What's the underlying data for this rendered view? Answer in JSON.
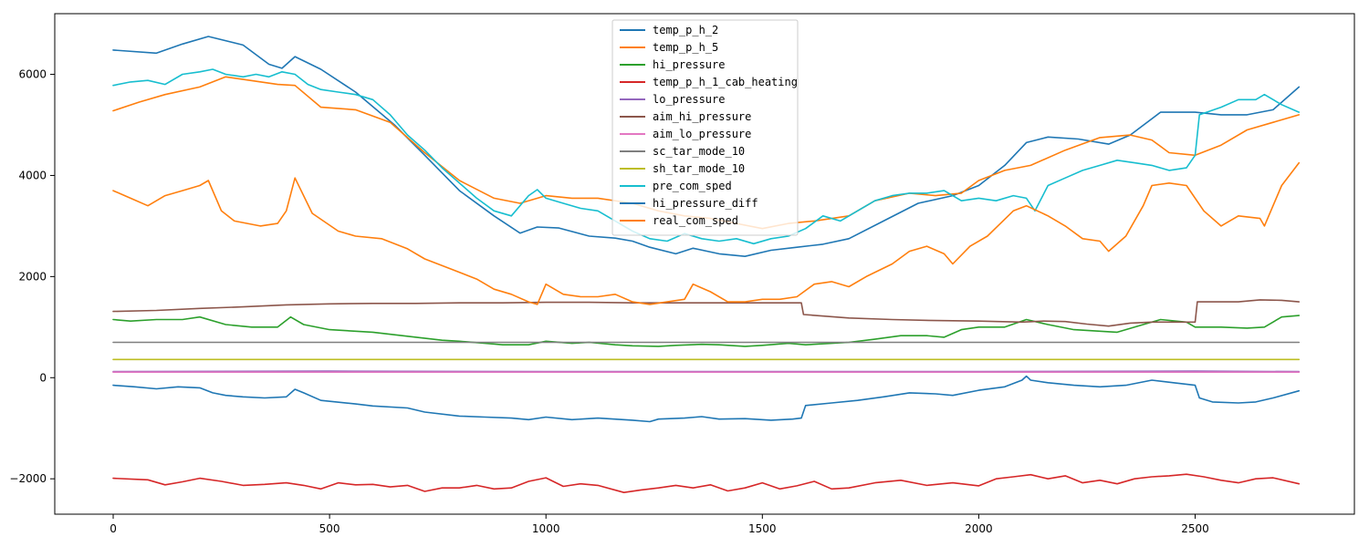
{
  "chart_data": {
    "type": "line",
    "title": "",
    "xlabel": "",
    "ylabel": "",
    "xlim": [
      -135,
      2868
    ],
    "ylim": [
      -2700,
      7200
    ],
    "xticks": [
      0,
      500,
      1000,
      1500,
      2000,
      2500
    ],
    "yticks": [
      -2000,
      0,
      2000,
      4000,
      6000
    ],
    "tick_labels": {
      "x": [
        "0",
        "500",
        "1000",
        "1500",
        "2000",
        "2500"
      ],
      "y": [
        "−2000",
        "0",
        "2000",
        "4000",
        "6000"
      ]
    },
    "grid": false,
    "legend_position": "top-center",
    "series": [
      {
        "name": "temp_p_h_2",
        "color": "#1f77b4",
        "x": [
          0,
          100,
          160,
          220,
          300,
          360,
          390,
          420,
          480,
          560,
          650,
          720,
          800,
          880,
          940,
          980,
          1030,
          1100,
          1160,
          1200,
          1240,
          1300,
          1340,
          1400,
          1460,
          1520,
          1580,
          1640,
          1700,
          1780,
          1860,
          1940,
          2000,
          2060,
          2110,
          2160,
          2230,
          2300,
          2350,
          2420,
          2500,
          2560,
          2620,
          2680,
          2740
        ],
        "y": [
          6480,
          6420,
          6600,
          6750,
          6580,
          6200,
          6120,
          6350,
          6100,
          5650,
          5000,
          4400,
          3700,
          3200,
          2860,
          2980,
          2960,
          2800,
          2760,
          2700,
          2580,
          2450,
          2560,
          2450,
          2400,
          2520,
          2580,
          2640,
          2750,
          3100,
          3450,
          3600,
          3800,
          4200,
          4650,
          4760,
          4720,
          4620,
          4800,
          5250,
          5250,
          5200,
          5200,
          5300,
          5750
        ]
      },
      {
        "name": "temp_p_h_5",
        "color": "#ff7f0e",
        "x": [
          0,
          60,
          120,
          200,
          260,
          300,
          380,
          420,
          480,
          560,
          640,
          720,
          800,
          880,
          940,
          1000,
          1060,
          1120,
          1200,
          1260,
          1320,
          1380,
          1440,
          1500,
          1560,
          1620,
          1700,
          1760,
          1840,
          1900,
          1960,
          2000,
          2060,
          2120,
          2200,
          2280,
          2350,
          2400,
          2440,
          2500,
          2560,
          2620,
          2680,
          2740
        ],
        "y": [
          5280,
          5450,
          5600,
          5750,
          5950,
          5900,
          5800,
          5780,
          5350,
          5300,
          5050,
          4450,
          3900,
          3550,
          3450,
          3600,
          3550,
          3550,
          3450,
          3300,
          3200,
          3150,
          3050,
          2950,
          3050,
          3100,
          3200,
          3500,
          3650,
          3600,
          3650,
          3900,
          4100,
          4200,
          4500,
          4750,
          4800,
          4700,
          4450,
          4400,
          4600,
          4900,
          5050,
          5200
        ]
      },
      {
        "name": "hi_pressure",
        "color": "#2ca02c",
        "x": [
          0,
          40,
          100,
          160,
          200,
          260,
          320,
          380,
          410,
          440,
          500,
          600,
          700,
          760,
          800,
          860,
          900,
          960,
          1000,
          1060,
          1100,
          1160,
          1200,
          1260,
          1300,
          1360,
          1400,
          1460,
          1500,
          1560,
          1600,
          1660,
          1700,
          1760,
          1820,
          1880,
          1920,
          1960,
          2000,
          2060,
          2110,
          2160,
          2220,
          2280,
          2320,
          2380,
          2420,
          2480,
          2500,
          2560,
          2620,
          2660,
          2700,
          2740
        ],
        "y": [
          1150,
          1120,
          1150,
          1150,
          1200,
          1050,
          1000,
          1000,
          1200,
          1050,
          950,
          900,
          800,
          740,
          720,
          680,
          650,
          650,
          720,
          680,
          700,
          650,
          630,
          620,
          640,
          660,
          650,
          620,
          640,
          680,
          650,
          680,
          700,
          760,
          830,
          830,
          800,
          950,
          1000,
          1000,
          1150,
          1050,
          950,
          920,
          900,
          1050,
          1150,
          1100,
          1000,
          1000,
          980,
          1000,
          1200,
          1230
        ]
      },
      {
        "name": "temp_p_h_1_cab_heating",
        "color": "#d62728",
        "x": [
          0,
          50,
          80,
          120,
          160,
          200,
          250,
          300,
          350,
          400,
          440,
          480,
          520,
          560,
          600,
          640,
          680,
          720,
          760,
          800,
          840,
          880,
          920,
          960,
          1000,
          1040,
          1080,
          1120,
          1180,
          1220,
          1260,
          1300,
          1340,
          1380,
          1420,
          1460,
          1500,
          1540,
          1580,
          1620,
          1660,
          1700,
          1760,
          1820,
          1880,
          1940,
          2000,
          2040,
          2080,
          2120,
          2160,
          2200,
          2240,
          2280,
          2320,
          2360,
          2400,
          2440,
          2480,
          2520,
          2560,
          2600,
          2640,
          2680,
          2740
        ],
        "y": [
          -1990,
          -2010,
          -2020,
          -2120,
          -2060,
          -1990,
          -2050,
          -2130,
          -2110,
          -2080,
          -2130,
          -2200,
          -2080,
          -2120,
          -2110,
          -2160,
          -2130,
          -2250,
          -2180,
          -2180,
          -2130,
          -2200,
          -2180,
          -2050,
          -1980,
          -2150,
          -2100,
          -2130,
          -2270,
          -2220,
          -2180,
          -2130,
          -2180,
          -2120,
          -2240,
          -2180,
          -2080,
          -2200,
          -2140,
          -2050,
          -2200,
          -2180,
          -2080,
          -2030,
          -2130,
          -2080,
          -2140,
          -2000,
          -1960,
          -1920,
          -2000,
          -1940,
          -2080,
          -2030,
          -2100,
          -2000,
          -1960,
          -1940,
          -1910,
          -1960,
          -2030,
          -2080,
          -2000,
          -1980,
          -2100
        ]
      },
      {
        "name": "lo_pressure",
        "color": "#9467bd",
        "x": [
          0,
          500,
          1000,
          1500,
          2000,
          2500,
          2740
        ],
        "y": [
          120,
          130,
          120,
          120,
          120,
          130,
          120
        ]
      },
      {
        "name": "aim_hi_pressure",
        "color": "#8c564b",
        "x": [
          0,
          100,
          200,
          300,
          400,
          500,
          600,
          700,
          800,
          900,
          1000,
          1100,
          1200,
          1300,
          1400,
          1500,
          1590,
          1595,
          1700,
          1800,
          1900,
          2000,
          2100,
          2150,
          2200,
          2250,
          2300,
          2350,
          2400,
          2450,
          2500,
          2505,
          2600,
          2650,
          2700,
          2740
        ],
        "y": [
          1310,
          1330,
          1370,
          1400,
          1440,
          1460,
          1470,
          1470,
          1480,
          1480,
          1490,
          1490,
          1480,
          1480,
          1480,
          1480,
          1480,
          1250,
          1180,
          1150,
          1130,
          1120,
          1100,
          1120,
          1110,
          1060,
          1020,
          1080,
          1100,
          1100,
          1100,
          1500,
          1500,
          1540,
          1530,
          1500
        ]
      },
      {
        "name": "aim_lo_pressure",
        "color": "#e377c2",
        "x": [
          0,
          500,
          1000,
          1500,
          2000,
          2500,
          2740
        ],
        "y": [
          110,
          110,
          110,
          110,
          110,
          110,
          110
        ]
      },
      {
        "name": "sc_tar_mode_10",
        "color": "#7f7f7f",
        "x": [
          0,
          2740
        ],
        "y": [
          700,
          700
        ]
      },
      {
        "name": "sh_tar_mode_10",
        "color": "#bcbd22",
        "x": [
          0,
          2740
        ],
        "y": [
          360,
          360
        ]
      },
      {
        "name": "pre_com_sped",
        "color": "#17becf",
        "x": [
          0,
          40,
          80,
          120,
          160,
          200,
          230,
          260,
          300,
          330,
          360,
          390,
          420,
          450,
          480,
          520,
          560,
          600,
          640,
          680,
          720,
          760,
          800,
          840,
          880,
          920,
          960,
          980,
          1000,
          1040,
          1080,
          1120,
          1160,
          1200,
          1240,
          1280,
          1320,
          1360,
          1400,
          1440,
          1480,
          1520,
          1560,
          1600,
          1640,
          1680,
          1720,
          1760,
          1800,
          1840,
          1880,
          1920,
          1960,
          2000,
          2040,
          2080,
          2110,
          2130,
          2160,
          2200,
          2240,
          2280,
          2320,
          2360,
          2400,
          2440,
          2480,
          2500,
          2510,
          2560,
          2600,
          2640,
          2660,
          2700,
          2740
        ],
        "y": [
          5780,
          5850,
          5880,
          5800,
          6000,
          6050,
          6100,
          6000,
          5950,
          6000,
          5950,
          6050,
          6000,
          5800,
          5700,
          5650,
          5600,
          5500,
          5200,
          4800,
          4500,
          4150,
          3850,
          3550,
          3300,
          3200,
          3600,
          3720,
          3550,
          3450,
          3350,
          3300,
          3100,
          2900,
          2750,
          2700,
          2850,
          2750,
          2700,
          2750,
          2650,
          2750,
          2800,
          2950,
          3200,
          3100,
          3300,
          3500,
          3600,
          3650,
          3650,
          3700,
          3500,
          3550,
          3500,
          3600,
          3550,
          3300,
          3800,
          3950,
          4100,
          4200,
          4300,
          4250,
          4200,
          4100,
          4150,
          4400,
          5200,
          5350,
          5500,
          5500,
          5600,
          5400,
          5250
        ]
      },
      {
        "name": "hi_pressure_diff",
        "color": "#1f77b4",
        "x": [
          0,
          50,
          100,
          150,
          200,
          230,
          260,
          300,
          350,
          400,
          420,
          440,
          480,
          560,
          600,
          680,
          720,
          800,
          860,
          920,
          960,
          1000,
          1060,
          1120,
          1200,
          1240,
          1260,
          1320,
          1360,
          1400,
          1460,
          1520,
          1570,
          1590,
          1600,
          1660,
          1720,
          1780,
          1840,
          1900,
          1940,
          2000,
          2060,
          2100,
          2110,
          2120,
          2160,
          2220,
          2280,
          2340,
          2400,
          2450,
          2500,
          2510,
          2540,
          2600,
          2640,
          2680,
          2740
        ],
        "y": [
          -150,
          -180,
          -220,
          -180,
          -200,
          -300,
          -350,
          -380,
          -400,
          -380,
          -230,
          -300,
          -450,
          -520,
          -560,
          -600,
          -680,
          -760,
          -780,
          -800,
          -830,
          -780,
          -830,
          -800,
          -840,
          -870,
          -820,
          -800,
          -770,
          -820,
          -810,
          -840,
          -820,
          -800,
          -550,
          -500,
          -450,
          -380,
          -300,
          -320,
          -350,
          -250,
          -180,
          -50,
          30,
          -50,
          -100,
          -150,
          -180,
          -150,
          -50,
          -100,
          -150,
          -400,
          -480,
          -500,
          -480,
          -400,
          -260
        ]
      },
      {
        "name": "real_com_sped",
        "color": "#ff7f0e",
        "x": [
          0,
          40,
          80,
          120,
          160,
          200,
          220,
          250,
          280,
          340,
          380,
          400,
          420,
          460,
          520,
          560,
          620,
          680,
          720,
          780,
          840,
          880,
          920,
          960,
          980,
          1000,
          1040,
          1080,
          1120,
          1160,
          1200,
          1240,
          1280,
          1320,
          1340,
          1380,
          1420,
          1460,
          1500,
          1540,
          1580,
          1620,
          1660,
          1700,
          1740,
          1800,
          1840,
          1880,
          1920,
          1940,
          1980,
          2020,
          2080,
          2110,
          2160,
          2200,
          2240,
          2280,
          2300,
          2340,
          2380,
          2400,
          2440,
          2480,
          2520,
          2560,
          2600,
          2650,
          2660,
          2700,
          2740
        ],
        "y": [
          3700,
          3550,
          3400,
          3600,
          3700,
          3800,
          3900,
          3300,
          3100,
          3000,
          3050,
          3300,
          3950,
          3250,
          2900,
          2800,
          2750,
          2550,
          2350,
          2150,
          1950,
          1750,
          1650,
          1500,
          1450,
          1850,
          1650,
          1600,
          1600,
          1650,
          1500,
          1450,
          1500,
          1550,
          1850,
          1700,
          1500,
          1500,
          1550,
          1550,
          1600,
          1850,
          1900,
          1800,
          2000,
          2250,
          2500,
          2600,
          2450,
          2250,
          2600,
          2800,
          3300,
          3400,
          3200,
          3000,
          2750,
          2700,
          2500,
          2800,
          3400,
          3800,
          3850,
          3800,
          3300,
          3000,
          3200,
          3150,
          3000,
          3800,
          4250
        ]
      }
    ]
  }
}
